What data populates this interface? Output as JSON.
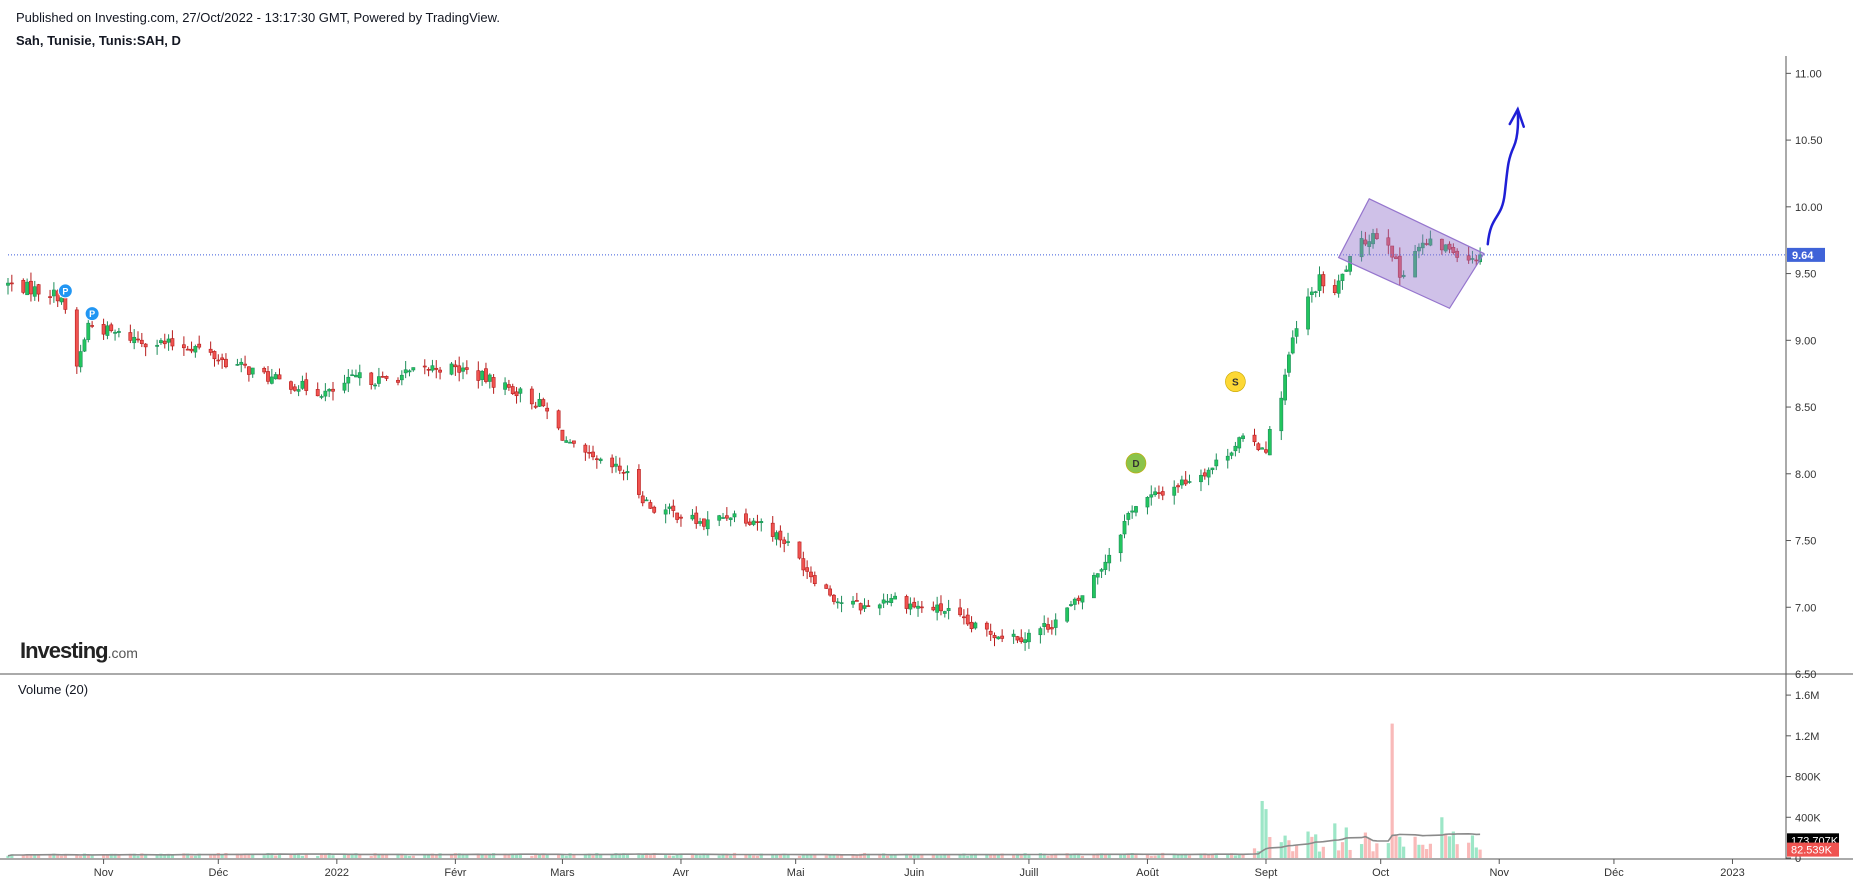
{
  "header": {
    "published": "Published on Investing.com, 27/Oct/2022 - 13:17:30 GMT, Powered by TradingView.",
    "symbol": "Sah, Tunisie, Tunis:SAH, D"
  },
  "logo": {
    "main": "Investing",
    "suffix": ".com"
  },
  "volume_panel": {
    "label": "Volume (20)"
  },
  "colors": {
    "up": "#26a69a",
    "up_fill": "#22c55e",
    "down": "#ef5350",
    "price_line": "#3b5bdb",
    "badge_blue": "#2196f3",
    "badge_green": "#8bc34a",
    "badge_yellow": "#fdd835",
    "channel": "#9575cd",
    "arrow": "#1f1fd6"
  },
  "chart_data": [
    {
      "type": "candlestick",
      "title": "Sah, Tunisie, Tunis:SAH, D",
      "x_range": [
        "2021-10-07",
        "2023-01-15"
      ],
      "ylim": [
        6.5,
        11.1
      ],
      "y_ticks": [
        "11.00",
        "10.50",
        "10.00",
        "9.50",
        "9.00",
        "8.50",
        "8.00",
        "7.50",
        "7.00",
        "6.50"
      ],
      "y_tick_values": [
        11.0,
        10.5,
        10.0,
        9.5,
        9.0,
        8.5,
        8.0,
        7.5,
        7.0,
        6.5
      ],
      "x_ticks": [
        {
          "label": "Nov",
          "date": "2021-11-01"
        },
        {
          "label": "Déc",
          "date": "2021-12-01"
        },
        {
          "label": "2022",
          "date": "2022-01-01"
        },
        {
          "label": "Févr",
          "date": "2022-02-01"
        },
        {
          "label": "Mars",
          "date": "2022-03-01"
        },
        {
          "label": "Avr",
          "date": "2022-04-01"
        },
        {
          "label": "Mai",
          "date": "2022-05-01"
        },
        {
          "label": "Juin",
          "date": "2022-06-01"
        },
        {
          "label": "Juill",
          "date": "2022-07-01"
        },
        {
          "label": "Août",
          "date": "2022-08-01"
        },
        {
          "label": "Sept",
          "date": "2022-09-01"
        },
        {
          "label": "Oct",
          "date": "2022-10-01"
        },
        {
          "label": "Nov",
          "date": "2022-11-01"
        },
        {
          "label": "Déc",
          "date": "2022-12-01"
        },
        {
          "label": "2023",
          "date": "2023-01-01"
        }
      ],
      "last_price": 9.64,
      "last_price_label": "9.64",
      "closes": [
        [
          "2021-10-07",
          9.42
        ],
        [
          "2021-10-14",
          9.38
        ],
        [
          "2021-10-21",
          9.33
        ],
        [
          "2021-10-25",
          8.8
        ],
        [
          "2021-10-28",
          9.12
        ],
        [
          "2021-11-04",
          9.05
        ],
        [
          "2021-11-11",
          9.0
        ],
        [
          "2021-11-18",
          8.97
        ],
        [
          "2021-11-25",
          8.95
        ],
        [
          "2021-12-02",
          8.85
        ],
        [
          "2021-12-09",
          8.78
        ],
        [
          "2021-12-16",
          8.7
        ],
        [
          "2021-12-23",
          8.65
        ],
        [
          "2021-12-30",
          8.6
        ],
        [
          "2022-01-06",
          8.72
        ],
        [
          "2022-01-13",
          8.7
        ],
        [
          "2022-01-20",
          8.75
        ],
        [
          "2022-01-27",
          8.8
        ],
        [
          "2022-02-03",
          8.78
        ],
        [
          "2022-02-10",
          8.7
        ],
        [
          "2022-02-17",
          8.62
        ],
        [
          "2022-02-24",
          8.5
        ],
        [
          "2022-03-03",
          8.2
        ],
        [
          "2022-03-10",
          8.08
        ],
        [
          "2022-03-17",
          8.02
        ],
        [
          "2022-03-24",
          7.75
        ],
        [
          "2022-03-31",
          7.7
        ],
        [
          "2022-04-07",
          7.62
        ],
        [
          "2022-04-14",
          7.7
        ],
        [
          "2022-04-21",
          7.65
        ],
        [
          "2022-04-28",
          7.5
        ],
        [
          "2022-05-05",
          7.25
        ],
        [
          "2022-05-12",
          7.05
        ],
        [
          "2022-05-19",
          7.0
        ],
        [
          "2022-05-26",
          7.08
        ],
        [
          "2022-06-02",
          7.0
        ],
        [
          "2022-06-09",
          6.98
        ],
        [
          "2022-06-16",
          6.85
        ],
        [
          "2022-06-23",
          6.8
        ],
        [
          "2022-06-30",
          6.78
        ],
        [
          "2022-07-07",
          6.88
        ],
        [
          "2022-07-14",
          7.05
        ],
        [
          "2022-07-21",
          7.35
        ],
        [
          "2022-07-28",
          7.75
        ],
        [
          "2022-08-04",
          7.85
        ],
        [
          "2022-08-11",
          7.95
        ],
        [
          "2022-08-18",
          8.05
        ],
        [
          "2022-08-25",
          8.25
        ],
        [
          "2022-09-01",
          8.2
        ],
        [
          "2022-09-05",
          8.6
        ],
        [
          "2022-09-08",
          9.0
        ],
        [
          "2022-09-12",
          9.3
        ],
        [
          "2022-09-15",
          9.45
        ],
        [
          "2022-09-19",
          9.35
        ],
        [
          "2022-09-22",
          9.55
        ],
        [
          "2022-09-26",
          9.72
        ],
        [
          "2022-09-29",
          9.8
        ],
        [
          "2022-10-03",
          9.75
        ],
        [
          "2022-10-06",
          9.48
        ],
        [
          "2022-10-10",
          9.68
        ],
        [
          "2022-10-13",
          9.72
        ],
        [
          "2022-10-17",
          9.7
        ],
        [
          "2022-10-20",
          9.68
        ],
        [
          "2022-10-24",
          9.62
        ],
        [
          "2022-10-27",
          9.64
        ]
      ]
    },
    {
      "type": "bar",
      "title": "Volume (20)",
      "ylim": [
        0,
        1650000
      ],
      "y_ticks": [
        "1.6M",
        "1.2M",
        "800K",
        "400K",
        "0"
      ],
      "y_tick_values": [
        1600000,
        1200000,
        800000,
        400000,
        0
      ],
      "volume_ma_label": "173.707K",
      "volume_ma": 173707,
      "last_volume_label": "82.539K",
      "last_volume": 82539,
      "spikes": [
        [
          "2022-08-31",
          560000,
          "up"
        ],
        [
          "2022-09-01",
          480000,
          "up"
        ],
        [
          "2022-09-06",
          220000,
          "up"
        ],
        [
          "2022-09-12",
          260000,
          "up"
        ],
        [
          "2022-09-19",
          340000,
          "up"
        ],
        [
          "2022-09-22",
          300000,
          "up"
        ],
        [
          "2022-09-27",
          250000,
          "down"
        ],
        [
          "2022-10-04",
          1320000,
          "down"
        ],
        [
          "2022-10-05",
          220000,
          "down"
        ],
        [
          "2022-10-17",
          400000,
          "up"
        ],
        [
          "2022-10-20",
          260000,
          "up"
        ],
        [
          "2022-10-27",
          82539,
          "down"
        ]
      ]
    }
  ],
  "annotations": {
    "badges": [
      {
        "letter": "P",
        "date": "2021-10-22",
        "price": 9.37,
        "color": "badge_blue"
      },
      {
        "letter": "P",
        "date": "2021-10-29",
        "price": 9.2,
        "color": "badge_blue"
      },
      {
        "letter": "D",
        "date": "2022-07-29",
        "price": 8.08,
        "color": "badge_green"
      },
      {
        "letter": "S",
        "date": "2022-08-24",
        "price": 8.69,
        "color": "badge_yellow"
      }
    ]
  }
}
